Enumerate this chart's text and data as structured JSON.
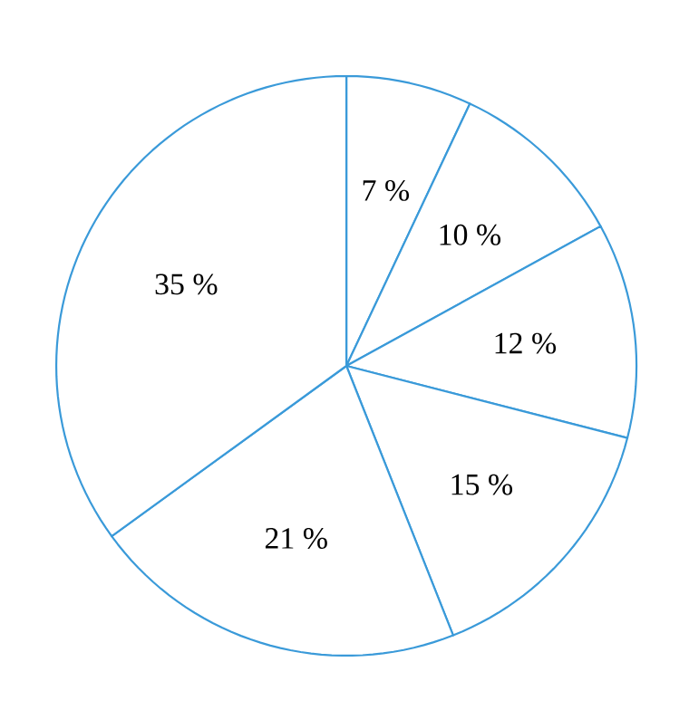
{
  "chart_data": {
    "type": "pie",
    "categories": [
      null,
      null,
      null,
      null,
      null,
      null
    ],
    "values": [
      7,
      10,
      12,
      15,
      21,
      35
    ],
    "colors": [
      "#ffffff",
      "#ffffff",
      "#ffffff",
      "#ffffff",
      "#ffffff",
      "#ffffff"
    ],
    "value_labels": [
      "7 %",
      "10 %",
      "12 %",
      "15 %",
      "21 %",
      "35 %"
    ]
  }
}
